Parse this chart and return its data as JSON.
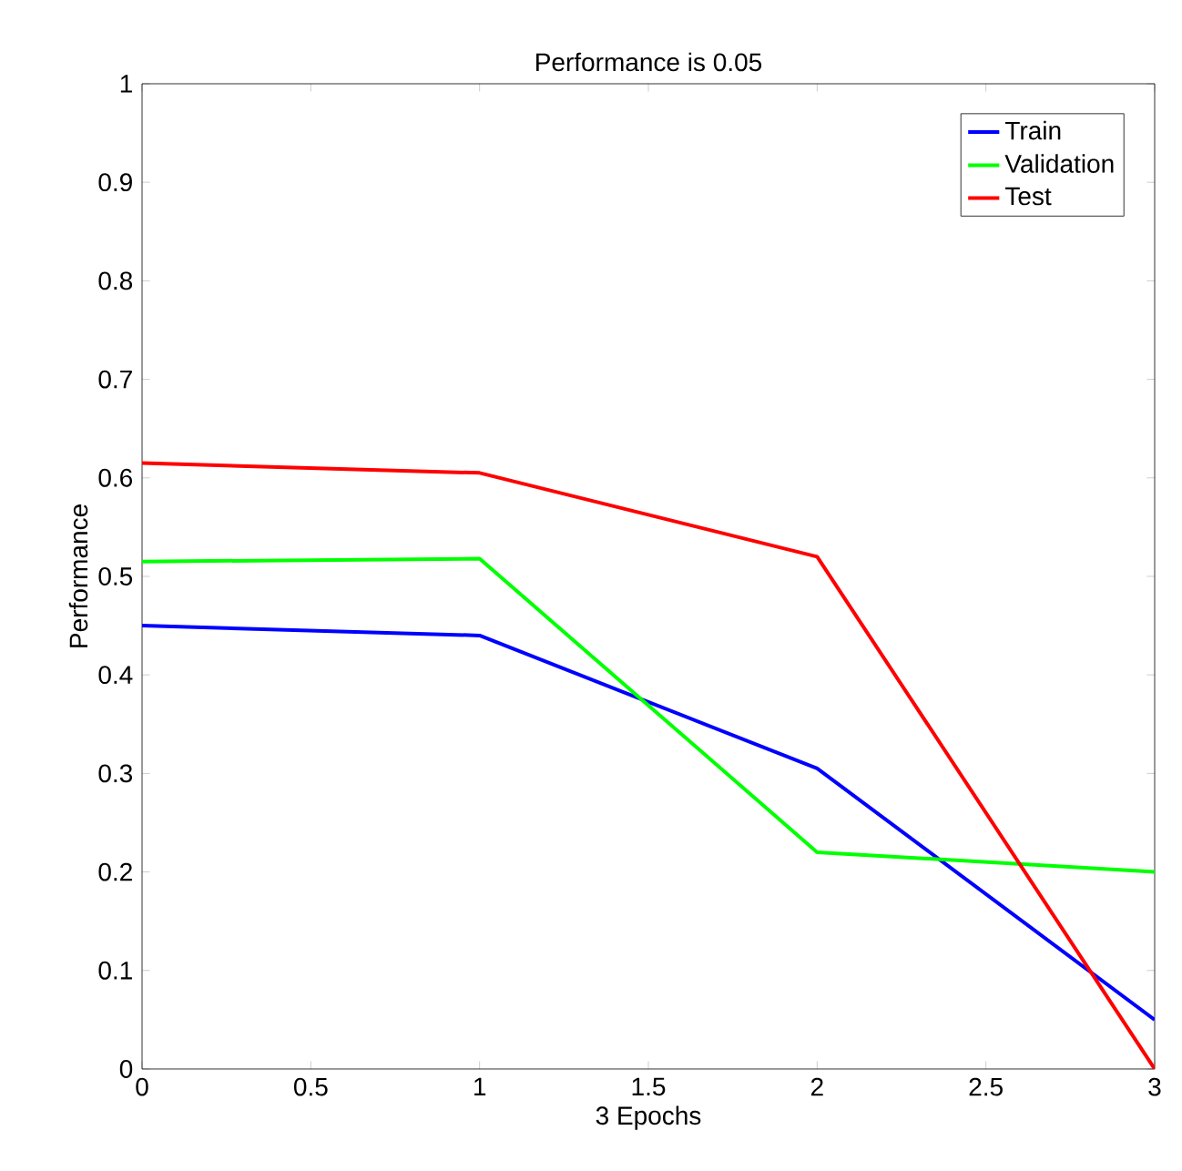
{
  "chart_data": {
    "type": "line",
    "title": "Performance is 0.05",
    "xlabel": "3 Epochs",
    "ylabel": "Performance",
    "x": [
      0,
      1,
      2,
      3
    ],
    "series": [
      {
        "name": "Train",
        "color": "#0000ff",
        "values": [
          0.45,
          0.44,
          0.305,
          0.05
        ]
      },
      {
        "name": "Validation",
        "color": "#00ff00",
        "values": [
          0.515,
          0.518,
          0.22,
          0.2
        ]
      },
      {
        "name": "Test",
        "color": "#ff0000",
        "values": [
          0.615,
          0.605,
          0.52,
          0.0
        ]
      }
    ],
    "xlim": [
      0,
      3
    ],
    "ylim": [
      0,
      1
    ],
    "xticks": [
      0,
      0.5,
      1,
      1.5,
      2,
      2.5,
      3
    ],
    "yticks": [
      0,
      0.1,
      0.2,
      0.3,
      0.4,
      0.5,
      0.6,
      0.7,
      0.8,
      0.9,
      1
    ],
    "legend": "top right",
    "marker": "none",
    "line_style": "solid"
  }
}
